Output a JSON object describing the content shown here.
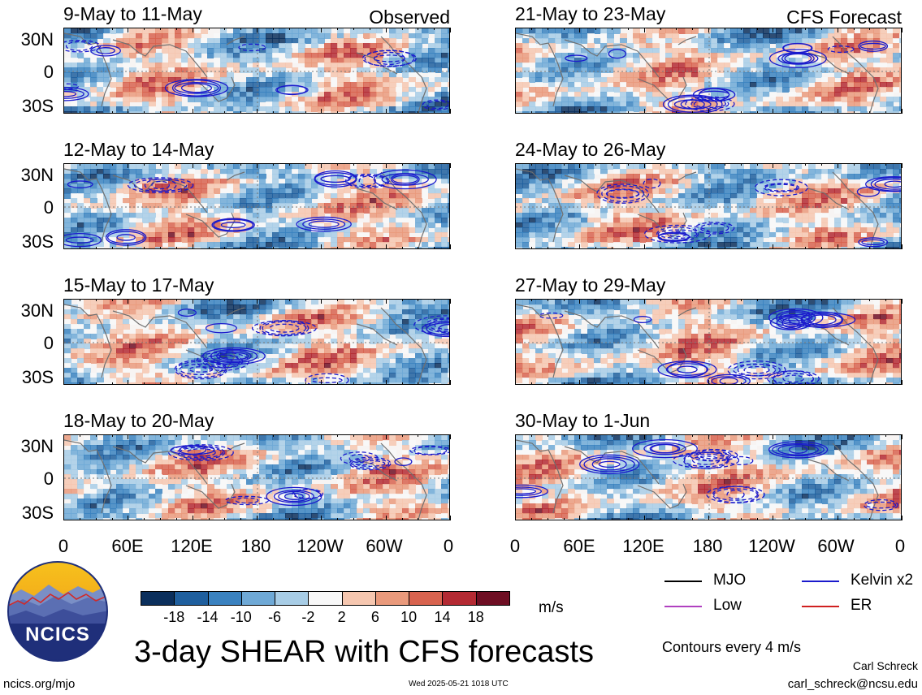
{
  "header": {
    "observed_label": "Observed",
    "forecast_label": "CFS Forecast"
  },
  "panels": [
    {
      "column": "left",
      "row": 0,
      "title": "9-May to 11-May",
      "seed": 11
    },
    {
      "column": "left",
      "row": 1,
      "title": "12-May to 14-May",
      "seed": 23
    },
    {
      "column": "left",
      "row": 2,
      "title": "15-May to 17-May",
      "seed": 37
    },
    {
      "column": "left",
      "row": 3,
      "title": "18-May to 20-May",
      "seed": 41
    },
    {
      "column": "right",
      "row": 0,
      "title": "21-May to 23-May",
      "seed": 53
    },
    {
      "column": "right",
      "row": 1,
      "title": "24-May to 26-May",
      "seed": 67
    },
    {
      "column": "right",
      "row": 2,
      "title": "27-May to 29-May",
      "seed": 71
    },
    {
      "column": "right",
      "row": 3,
      "title": "30-May to 1-Jun",
      "seed": 89
    }
  ],
  "axes": {
    "lat_labels": [
      "30N",
      "0",
      "30S"
    ],
    "lon_labels": [
      "0",
      "60E",
      "120E",
      "180",
      "120W",
      "60W",
      "0"
    ]
  },
  "colorbar": {
    "unit": "m/s",
    "labels": [
      "-18",
      "-14",
      "-10",
      "-6",
      "-2",
      "2",
      "6",
      "10",
      "14",
      "18"
    ],
    "colors": [
      "#0b2f5c",
      "#1f5f9e",
      "#3a82c0",
      "#6fa9d6",
      "#a8cde6",
      "#f8f8f8",
      "#f6c7b0",
      "#ea9a7c",
      "#d8634f",
      "#b42a33",
      "#6e0e23"
    ]
  },
  "legend": {
    "items": [
      {
        "label": "MJO",
        "color": "#000000"
      },
      {
        "label": "Kelvin x2",
        "color": "#1a1acc"
      },
      {
        "label": "Low",
        "color": "#b040c0"
      },
      {
        "label": "ER",
        "color": "#d02020"
      }
    ],
    "contour_note": "Contours every 4 m/s"
  },
  "branding": {
    "logo_text": "NCICS",
    "main_title": "3-day SHEAR with CFS forecasts",
    "website": "ncics.org/mjo",
    "timestamp": "Wed 2025-05-21 1018 UTC",
    "author": "Carl Schreck",
    "email": "carl_schreck@ncsu.edu"
  }
}
